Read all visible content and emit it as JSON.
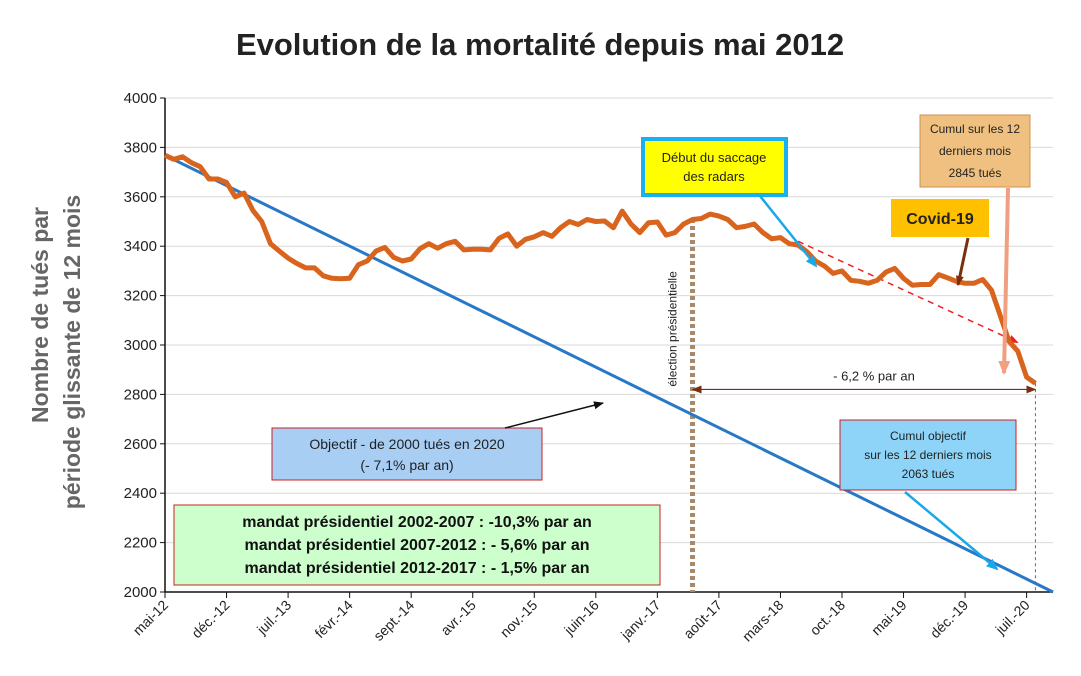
{
  "chart_data": {
    "type": "line",
    "title": "Evolution de la mortalité depuis mai 2012",
    "ylabel": "Nombre de tués par période  glissante de 12 mois",
    "ylabel_line1": "Nombre de tués par",
    "ylabel_line2": "période  glissante de 12 mois",
    "xlabel": "",
    "ylim": [
      2000,
      4000
    ],
    "yticks": [
      2000,
      2200,
      2400,
      2600,
      2800,
      3000,
      3200,
      3400,
      3600,
      3800,
      4000
    ],
    "grid": true,
    "x_categories": [
      "mai-12",
      "déc.-12",
      "juil.-13",
      "févr.-14",
      "sept.-14",
      "avr.-15",
      "nov.-15",
      "juin-16",
      "janv.-17",
      "août-17",
      "mars-18",
      "oct.-18",
      "mai-19",
      "déc.-19",
      "juil.-20"
    ],
    "x_range": [
      "mai-12",
      "oct.-20"
    ],
    "series": [
      {
        "name": "mortalité",
        "color": "#d8641e",
        "points": [
          [
            "mai-12",
            3768
          ],
          [
            "juin-12",
            3752
          ],
          [
            "juil.-12",
            3762
          ],
          [
            "août-12",
            3738
          ],
          [
            "sept.-12",
            3722
          ],
          [
            "oct.-12",
            3672
          ],
          [
            "nov.-12",
            3672
          ],
          [
            "déc.-12",
            3658
          ],
          [
            "janv.-13",
            3600
          ],
          [
            "févr.-13",
            3615
          ],
          [
            "mars-13",
            3545
          ],
          [
            "avr.-13",
            3500
          ],
          [
            "mai-13",
            3410
          ],
          [
            "juin-13",
            3380
          ],
          [
            "juil.-13",
            3352
          ],
          [
            "août-13",
            3330
          ],
          [
            "sept.-13",
            3312
          ],
          [
            "oct.-13",
            3312
          ],
          [
            "nov.-13",
            3280
          ],
          [
            "déc.-13",
            3270
          ],
          [
            "janv.-14",
            3268
          ],
          [
            "févr.-14",
            3270
          ],
          [
            "mars-14",
            3325
          ],
          [
            "avr.-14",
            3340
          ],
          [
            "mai-14",
            3380
          ],
          [
            "juin-14",
            3395
          ],
          [
            "juil.-14",
            3355
          ],
          [
            "août-14",
            3340
          ],
          [
            "sept.-14",
            3348
          ],
          [
            "oct.-14",
            3390
          ],
          [
            "nov.-14",
            3410
          ],
          [
            "déc.-14",
            3392
          ],
          [
            "janv.-15",
            3410
          ],
          [
            "févr.-15",
            3420
          ],
          [
            "mars-15",
            3385
          ],
          [
            "avr.-15",
            3388
          ],
          [
            "mai-15",
            3388
          ],
          [
            "juin-15",
            3385
          ],
          [
            "juil.-15",
            3432
          ],
          [
            "août-15",
            3450
          ],
          [
            "sept.-15",
            3400
          ],
          [
            "oct.-15",
            3428
          ],
          [
            "nov.-15",
            3438
          ],
          [
            "déc.-15",
            3455
          ],
          [
            "janv.-16",
            3440
          ],
          [
            "févr.-16",
            3475
          ],
          [
            "mars-16",
            3500
          ],
          [
            "avr.-16",
            3488
          ],
          [
            "mai-16",
            3508
          ],
          [
            "juin-16",
            3500
          ],
          [
            "juil.-16",
            3502
          ],
          [
            "août-16",
            3475
          ],
          [
            "sept.-16",
            3542
          ],
          [
            "oct.-16",
            3490
          ],
          [
            "nov.-16",
            3455
          ],
          [
            "déc.-16",
            3495
          ],
          [
            "janv.-17",
            3498
          ],
          [
            "févr.-17",
            3445
          ],
          [
            "mars-17",
            3455
          ],
          [
            "avr.-17",
            3490
          ],
          [
            "mai-17",
            3508
          ],
          [
            "juin-17",
            3512
          ],
          [
            "juil.-17",
            3530
          ],
          [
            "août-17",
            3522
          ],
          [
            "sept.-17",
            3508
          ],
          [
            "oct.-17",
            3475
          ],
          [
            "nov.-17",
            3480
          ],
          [
            "déc.-17",
            3490
          ],
          [
            "janv.-18",
            3455
          ],
          [
            "févr.-18",
            3430
          ],
          [
            "mars-18",
            3435
          ],
          [
            "avr.-18",
            3410
          ],
          [
            "mai-18",
            3405
          ],
          [
            "juin-18",
            3378
          ],
          [
            "juil.-18",
            3340
          ],
          [
            "août-18",
            3320
          ],
          [
            "sept.-18",
            3290
          ],
          [
            "oct.-18",
            3300
          ],
          [
            "nov.-18",
            3262
          ],
          [
            "déc.-18",
            3258
          ],
          [
            "janv.-19",
            3250
          ],
          [
            "févr.-19",
            3262
          ],
          [
            "mars-19",
            3295
          ],
          [
            "avr.-19",
            3310
          ],
          [
            "mai-19",
            3270
          ],
          [
            "juin-19",
            3242
          ],
          [
            "juil.-19",
            3245
          ],
          [
            "août-19",
            3245
          ],
          [
            "sept.-19",
            3285
          ],
          [
            "oct.-19",
            3272
          ],
          [
            "nov.-19",
            3258
          ],
          [
            "déc.-19",
            3250
          ],
          [
            "janv.-20",
            3250
          ],
          [
            "févr.-20",
            3265
          ],
          [
            "mars-20",
            3222
          ],
          [
            "avr.-20",
            3120
          ],
          [
            "mai-20",
            3015
          ],
          [
            "juin-20",
            2975
          ],
          [
            "juil.-20",
            2870
          ],
          [
            "août-20",
            2845
          ]
        ]
      },
      {
        "name": "Objectif - de 2000 tués en 2020",
        "color": "#2878c8",
        "points": [
          [
            "mai-12",
            3768
          ],
          [
            "oct.-20",
            2000
          ]
        ]
      }
    ],
    "trend_line": {
      "color": "#ee2020",
      "from": [
        "mai-18",
        3420
      ],
      "to": [
        "juin-20",
        3010
      ]
    },
    "election_line": {
      "x": "mai-17",
      "label": "élection présidentielle"
    },
    "arrow_span": {
      "from": "mai-17",
      "to": "août-20",
      "y": 2820,
      "label": "- 6,2 % par an"
    },
    "annotations": {
      "radars": "Début du saccage des radars",
      "radars_line1": "Début du saccage",
      "radars_line2": "des radars",
      "covid": "Covid-19",
      "cumul_line1": "Cumul sur les 12",
      "cumul_line2": "derniers mois",
      "cumul_line3": "2845 tués",
      "objectif_label_line1": "Objectif - de 2000 tués en 2020",
      "objectif_label_line2": "(- 7,1% par an)",
      "cumul_obj_line1": "Cumul objectif",
      "cumul_obj_line2": "sur les 12 derniers mois",
      "cumul_obj_line3": "2063 tués",
      "mandats": [
        "mandat présidentiel 2002-2007 : -10,3% par an",
        "mandat présidentiel 2007-2012 : - 5,6% par an",
        "mandat présidentiel 2012-2017 : - 1,5% par an"
      ]
    }
  }
}
